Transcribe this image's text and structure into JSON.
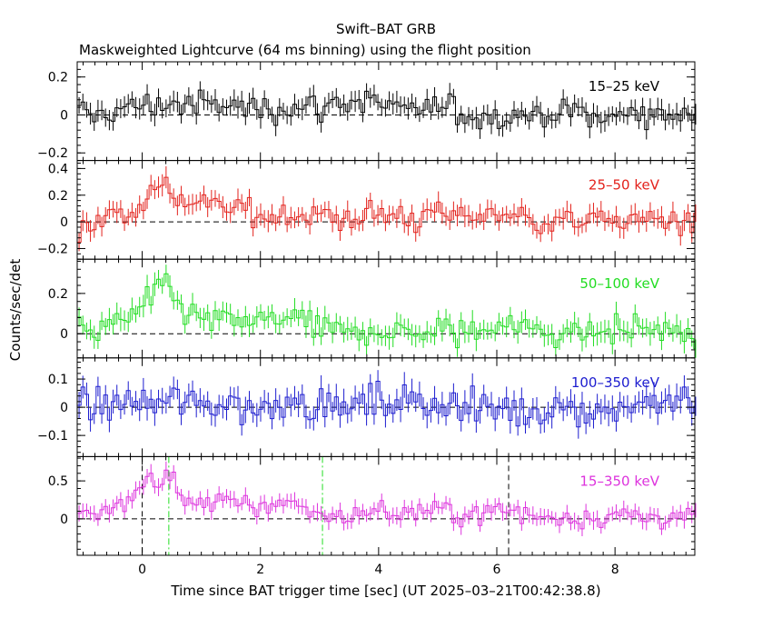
{
  "figure": {
    "title": "Swift–BAT GRB",
    "subtitle": "Maskweighted Lightcurve (64 ms binning) using the flight position"
  },
  "chart_data": {
    "type": "line",
    "xlabel": "Time since BAT trigger time [sec] (UT 2025–03–21T00:42:38.8)",
    "ylabel": "Counts/sec/det",
    "xlim": [
      -1.1,
      9.35
    ],
    "x_ticks": [
      0,
      2,
      4,
      6,
      8
    ],
    "grid": false,
    "bin_width_sec": 0.064,
    "markers": [
      {
        "x": 0.0,
        "style": "black-dashed"
      },
      {
        "x": 6.2,
        "style": "black-dashed"
      },
      {
        "x": 0.45,
        "style": "green-dashdot"
      },
      {
        "x": 3.05,
        "style": "green-dashdot"
      }
    ],
    "panels": [
      {
        "name": "15–25 keV",
        "color": "#000000",
        "ylim": [
          -0.24,
          0.28
        ],
        "y_ticks": [
          -0.2,
          0,
          0.2
        ],
        "y_tick_labels": [
          "−0.2",
          "0",
          "0.2"
        ],
        "t": [
          -0.8,
          0,
          0.5,
          1,
          1.5,
          2,
          2.5,
          3,
          3.5,
          4,
          4.5,
          5,
          5.5,
          6,
          6.5,
          7,
          7.5,
          8,
          8.5,
          9
        ],
        "rate": [
          0.0,
          0.05,
          0.06,
          0.05,
          0.05,
          0.03,
          0.05,
          0.04,
          0.08,
          0.06,
          0.01,
          0.04,
          0.0,
          0.0,
          0.0,
          0.01,
          0.01,
          -0.02,
          0.02,
          0.0
        ],
        "error": 0.05
      },
      {
        "name": "25–50 keV",
        "color": "#e3221c",
        "ylim": [
          -0.28,
          0.46
        ],
        "y_ticks": [
          -0.2,
          0,
          0.2,
          0.4
        ],
        "y_tick_labels": [
          "−0.2",
          "0",
          "0.2",
          "0.4"
        ],
        "t": [
          -0.8,
          0,
          0.1,
          0.3,
          0.45,
          0.6,
          1,
          1.5,
          2,
          2.5,
          3,
          3.5,
          4,
          4.5,
          5,
          5.5,
          6,
          6.5,
          7,
          7.5,
          8,
          8.5,
          9
        ],
        "rate": [
          0.0,
          0.12,
          0.28,
          0.22,
          0.3,
          0.18,
          0.12,
          0.1,
          0.06,
          0.06,
          0.02,
          0.04,
          0.05,
          0.03,
          0.06,
          0.05,
          0.07,
          0.02,
          0.0,
          0.01,
          0.02,
          0.01,
          0.01
        ],
        "error": 0.07
      },
      {
        "name": "50–100 keV",
        "color": "#22dd22",
        "ylim": [
          -0.12,
          0.37
        ],
        "y_ticks": [
          0,
          0.2
        ],
        "y_tick_labels": [
          "0",
          "0.2"
        ],
        "t": [
          -0.8,
          0,
          0.1,
          0.3,
          0.45,
          0.6,
          1,
          1.5,
          2,
          2.5,
          3,
          3.5,
          4,
          4.5,
          5,
          5.5,
          6,
          6.5,
          7,
          7.5,
          8,
          8.5,
          9
        ],
        "rate": [
          0.0,
          0.12,
          0.18,
          0.19,
          0.24,
          0.14,
          0.06,
          0.06,
          0.05,
          0.08,
          0.01,
          0.0,
          0.02,
          0.0,
          0.01,
          0.0,
          0.05,
          0.02,
          0.01,
          0.01,
          0.02,
          0.03,
          0.0
        ],
        "error": 0.05
      },
      {
        "name": "100–350 keV",
        "color": "#1c1ccf",
        "ylim": [
          -0.175,
          0.175
        ],
        "y_ticks": [
          -0.1,
          0,
          0.1
        ],
        "y_tick_labels": [
          "−0.1",
          "0",
          "0.1"
        ],
        "t": [
          -0.8,
          0,
          0.5,
          1,
          1.5,
          2,
          2.5,
          3,
          3.5,
          4,
          4.5,
          5,
          5.5,
          6,
          6.5,
          7,
          7.5,
          8,
          8.5,
          9
        ],
        "rate": [
          0.0,
          0.01,
          0.02,
          0.01,
          0.01,
          -0.01,
          0.04,
          0.0,
          0.01,
          0.01,
          0.02,
          0.03,
          -0.01,
          0.0,
          -0.02,
          0.01,
          -0.01,
          0.0,
          0.01,
          0.02
        ],
        "error": 0.04
      },
      {
        "name": "15–350 keV",
        "color": "#dd33dd",
        "ylim": [
          -0.48,
          0.82
        ],
        "y_ticks": [
          0,
          0.5
        ],
        "y_tick_labels": [
          "0",
          "0.5"
        ],
        "t": [
          -0.8,
          0,
          0.1,
          0.3,
          0.45,
          0.6,
          1,
          1.5,
          2,
          2.5,
          3,
          3.5,
          4,
          4.5,
          5,
          5.5,
          6,
          6.5,
          7,
          7.5,
          8,
          8.5,
          9
        ],
        "rate": [
          0.05,
          0.35,
          0.6,
          0.45,
          0.62,
          0.32,
          0.22,
          0.2,
          0.14,
          0.25,
          0.03,
          0.05,
          0.1,
          0.07,
          0.1,
          0.05,
          0.12,
          0.04,
          0.02,
          0.03,
          0.03,
          0.04,
          0.02
        ],
        "error": 0.1
      }
    ]
  }
}
